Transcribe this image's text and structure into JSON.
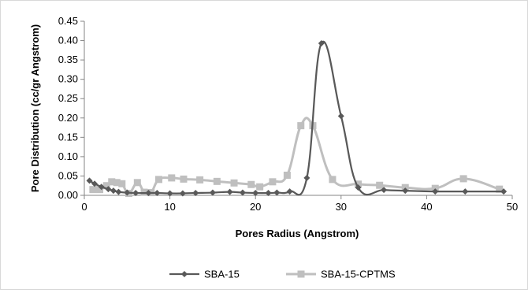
{
  "chart_data": {
    "type": "line",
    "xlabel": "Pores Radius (Angstrom)",
    "ylabel": "Pore Distribution (cc/gr Angstrom)",
    "xlim": [
      0,
      50
    ],
    "ylim": [
      0,
      0.45
    ],
    "x_ticks": [
      0,
      10,
      20,
      30,
      40,
      50
    ],
    "y_ticks": [
      0.0,
      0.05,
      0.1,
      0.15,
      0.2,
      0.25,
      0.3,
      0.35,
      0.4,
      0.45
    ],
    "x_tick_labels": [
      "0",
      "10",
      "20",
      "30",
      "40",
      "50"
    ],
    "y_tick_labels": [
      "0.00",
      "0.05",
      "0.10",
      "0.15",
      "0.20",
      "0.25",
      "0.30",
      "0.35",
      "0.40",
      "0.45"
    ],
    "grid": false,
    "legend_position": "bottom",
    "series": [
      {
        "name": "SBA-15",
        "color": "#595959",
        "marker": "diamond",
        "points": [
          [
            0.6,
            0.038
          ],
          [
            1.2,
            0.03
          ],
          [
            2.0,
            0.022
          ],
          [
            2.8,
            0.016
          ],
          [
            3.4,
            0.012
          ],
          [
            4.0,
            0.009
          ],
          [
            5.0,
            0.007
          ],
          [
            6.0,
            0.006
          ],
          [
            7.5,
            0.006
          ],
          [
            8.5,
            0.006
          ],
          [
            10.0,
            0.005
          ],
          [
            11.5,
            0.005
          ],
          [
            13.0,
            0.006
          ],
          [
            15.0,
            0.007
          ],
          [
            17.0,
            0.009
          ],
          [
            18.5,
            0.007
          ],
          [
            20.0,
            0.006
          ],
          [
            21.5,
            0.006
          ],
          [
            22.5,
            0.007
          ],
          [
            24.0,
            0.01
          ],
          [
            26.0,
            0.045
          ],
          [
            27.7,
            0.393
          ],
          [
            30.0,
            0.205
          ],
          [
            32.0,
            0.02
          ],
          [
            35.0,
            0.014
          ],
          [
            37.5,
            0.012
          ],
          [
            41.0,
            0.01
          ],
          [
            44.5,
            0.01
          ],
          [
            49.0,
            0.01
          ]
        ]
      },
      {
        "name": "SBA-15-CPTMS",
        "color": "#bfbfbf",
        "marker": "square",
        "points": [
          [
            1.0,
            0.015
          ],
          [
            1.8,
            0.015
          ],
          [
            2.6,
            0.025
          ],
          [
            3.2,
            0.035
          ],
          [
            3.8,
            0.033
          ],
          [
            4.4,
            0.03
          ],
          [
            5.2,
            0.005
          ],
          [
            6.2,
            0.033
          ],
          [
            7.0,
            0.008
          ],
          [
            7.8,
            0.007
          ],
          [
            8.7,
            0.041
          ],
          [
            10.2,
            0.045
          ],
          [
            11.6,
            0.042
          ],
          [
            13.5,
            0.04
          ],
          [
            15.5,
            0.036
          ],
          [
            17.5,
            0.032
          ],
          [
            19.5,
            0.028
          ],
          [
            20.5,
            0.022
          ],
          [
            22.0,
            0.035
          ],
          [
            23.7,
            0.052
          ],
          [
            25.3,
            0.18
          ],
          [
            26.7,
            0.18
          ],
          [
            29.0,
            0.041
          ],
          [
            32.0,
            0.029
          ],
          [
            34.5,
            0.026
          ],
          [
            37.5,
            0.02
          ],
          [
            41.0,
            0.018
          ],
          [
            44.3,
            0.043
          ],
          [
            48.5,
            0.016
          ]
        ]
      }
    ]
  }
}
